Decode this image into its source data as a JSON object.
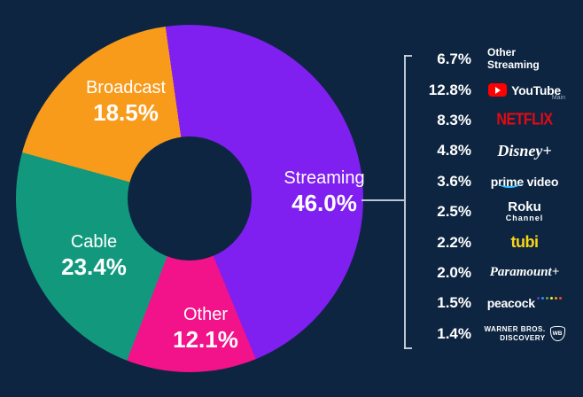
{
  "colors": {
    "background": "#0d2541",
    "streaming": "#7f1ff0",
    "other": "#f2128a",
    "cable": "#12997d",
    "broadcast": "#f89b1b",
    "netflix_red": "#e50914",
    "youtube_red": "#ff0000",
    "tubi_yellow": "#fad519",
    "prime_blue": "#36c2ff"
  },
  "chart_data": {
    "type": "pie",
    "donut": true,
    "start_angle_deg": -8,
    "categories": [
      "Streaming",
      "Other",
      "Cable",
      "Broadcast"
    ],
    "values": [
      46.0,
      12.1,
      23.4,
      18.5
    ],
    "slices": [
      {
        "label": "Streaming",
        "value": 46.0,
        "display": "46.0%",
        "color": "#7f1ff0"
      },
      {
        "label": "Other",
        "value": 12.1,
        "display": "12.1%",
        "color": "#f2128a"
      },
      {
        "label": "Cable",
        "value": 23.4,
        "display": "23.4%",
        "color": "#12997d"
      },
      {
        "label": "Broadcast",
        "value": 18.5,
        "display": "18.5%",
        "color": "#f89b1b"
      }
    ],
    "breakdown": {
      "of": "Streaming",
      "items": [
        {
          "pct": "6.7%",
          "value": 6.7,
          "line1": "Other",
          "line2": "Streaming"
        },
        {
          "pct": "12.8%",
          "value": 12.8,
          "name": "YouTube",
          "sub": "Main"
        },
        {
          "pct": "8.3%",
          "value": 8.3,
          "name": "NETFLIX"
        },
        {
          "pct": "4.8%",
          "value": 4.8,
          "name": "Disney+"
        },
        {
          "pct": "3.6%",
          "value": 3.6,
          "name": "prime video"
        },
        {
          "pct": "2.5%",
          "value": 2.5,
          "name": "Roku",
          "sub": "Channel"
        },
        {
          "pct": "2.2%",
          "value": 2.2,
          "name": "tubi"
        },
        {
          "pct": "2.0%",
          "value": 2.0,
          "name": "Paramount+"
        },
        {
          "pct": "1.5%",
          "value": 1.5,
          "name": "peacock"
        },
        {
          "pct": "1.4%",
          "value": 1.4,
          "line1": "WARNER BROS.",
          "line2": "DISCOVERY",
          "icon_text": "WB"
        }
      ]
    }
  }
}
